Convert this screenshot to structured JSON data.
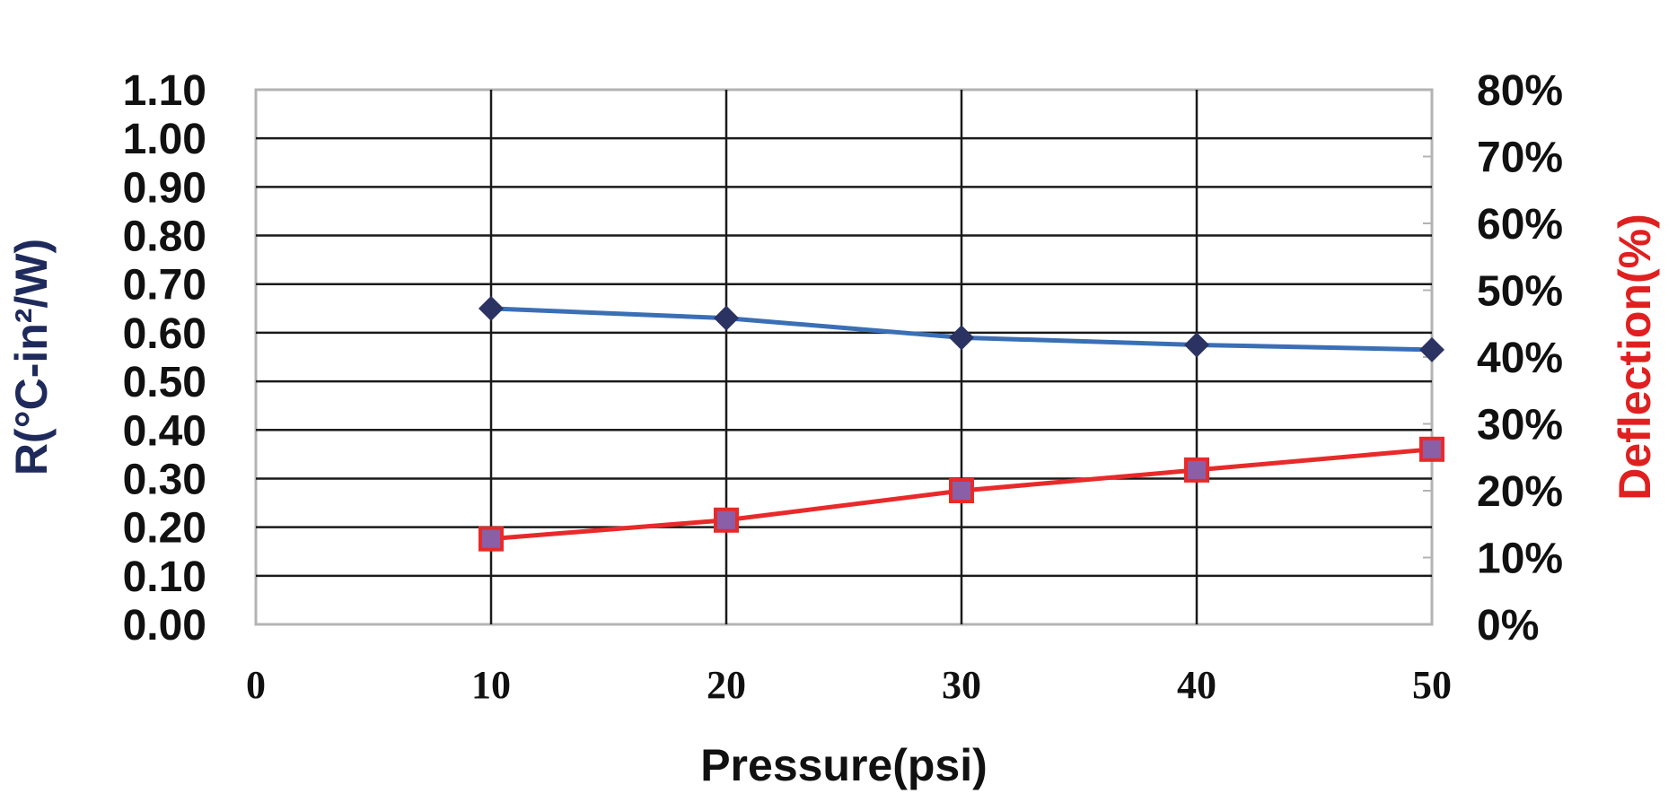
{
  "chart_data": {
    "type": "line",
    "x": [
      10,
      20,
      30,
      40,
      50
    ],
    "xlabel": "Pressure(psi)",
    "xlim": [
      0,
      50
    ],
    "x_ticks": [
      "0",
      "10",
      "20",
      "30",
      "40",
      "50"
    ],
    "y_left": {
      "label": "R(°C-in²/W)",
      "lim": [
        0,
        1.1
      ],
      "ticks": [
        "0.00",
        "0.10",
        "0.20",
        "0.30",
        "0.40",
        "0.50",
        "0.60",
        "0.70",
        "0.80",
        "0.90",
        "1.00",
        "1.10"
      ],
      "color": "#1f2a5c"
    },
    "y_right": {
      "label": "Deflection(%)",
      "lim": [
        0,
        80
      ],
      "ticks": [
        "0%",
        "10%",
        "20%",
        "30%",
        "40%",
        "50%",
        "60%",
        "70%",
        "80%"
      ],
      "color": "#e02020"
    },
    "series": [
      {
        "axis": "left",
        "values": [
          0.65,
          0.63,
          0.59,
          0.575,
          0.565
        ],
        "line_color": "#3a6fb5",
        "marker": "diamond",
        "marker_color": "#2b3363"
      },
      {
        "axis": "right",
        "values": [
          12.8,
          15.6,
          20.0,
          23.1,
          26.2
        ],
        "line_color": "#e82a2a",
        "marker": "square",
        "marker_color": "#8a5fa8",
        "marker_edge": "#e82a2a"
      }
    ],
    "grid": true
  }
}
